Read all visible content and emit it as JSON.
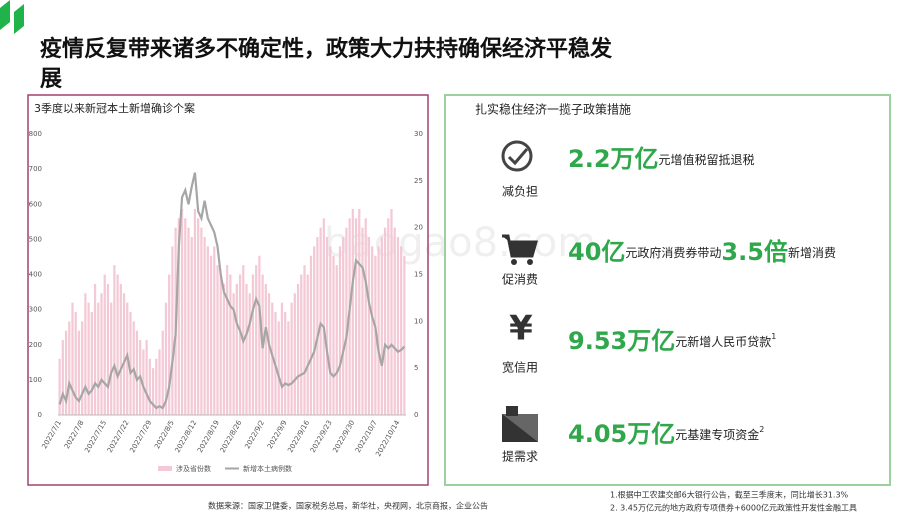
{
  "header": {
    "title_line1": "疫情反复带来诸多不确定性，政策大力扶持确保经济平稳发",
    "title_line2": "展"
  },
  "watermark": "baogao8.com",
  "chart_data": {
    "type": "bar_line",
    "title": "3季度以来新冠本土新增确诊个案",
    "categories": [
      "2022/7/1",
      null,
      null,
      null,
      null,
      null,
      null,
      "2022/7/8",
      null,
      null,
      null,
      null,
      null,
      null,
      "2022/7/15",
      null,
      null,
      null,
      null,
      null,
      null,
      "2022/7/22",
      null,
      null,
      null,
      null,
      null,
      null,
      "2022/7/29",
      null,
      null,
      null,
      null,
      null,
      null,
      "2022/8/5",
      null,
      null,
      null,
      null,
      null,
      null,
      "2022/8/12",
      null,
      null,
      null,
      null,
      null,
      null,
      "2022/8/19",
      null,
      null,
      null,
      null,
      null,
      null,
      "2022/8/26",
      null,
      null,
      null,
      null,
      null,
      null,
      "2022/9/2",
      null,
      null,
      null,
      null,
      null,
      null,
      "2022/9/9",
      null,
      null,
      null,
      null,
      null,
      null,
      "2022/9/16",
      null,
      null,
      null,
      null,
      null,
      null,
      "2022/9/23",
      null,
      null,
      null,
      null,
      null,
      null,
      "2022/9/30",
      null,
      null,
      null,
      null,
      null,
      null,
      "2022/10/7",
      null,
      null,
      null,
      null,
      null,
      null,
      "2022/10/14",
      null,
      null
    ],
    "series": [
      {
        "name": "涉及省份数",
        "color": "#f4c9d6",
        "type": "bar",
        "axis": "y2",
        "values": [
          6,
          8,
          9,
          10,
          12,
          11,
          9,
          10,
          13,
          12,
          11,
          14,
          12,
          13,
          15,
          14,
          12,
          16,
          15,
          14,
          13,
          12,
          11,
          10,
          9,
          8,
          7,
          8,
          6,
          5,
          6,
          7,
          9,
          12,
          15,
          18,
          20,
          21,
          22,
          21,
          20,
          19,
          22,
          21,
          20,
          19,
          18,
          17,
          18,
          16,
          15,
          14,
          16,
          15,
          13,
          14,
          15,
          16,
          14,
          13,
          15,
          16,
          17,
          15,
          14,
          13,
          12,
          11,
          10,
          12,
          11,
          10,
          12,
          13,
          14,
          15,
          16,
          15,
          17,
          18,
          19,
          20,
          21,
          19,
          18,
          17,
          16,
          18,
          19,
          20,
          21,
          22,
          21,
          22,
          20,
          21,
          19,
          18,
          17,
          18,
          19,
          20,
          21,
          22,
          20,
          19,
          18,
          17
        ]
      },
      {
        "name": "新增本土病例数",
        "color": "#a6a6a6",
        "type": "line",
        "values": [
          30,
          60,
          40,
          90,
          70,
          50,
          40,
          60,
          80,
          60,
          70,
          90,
          80,
          100,
          90,
          80,
          120,
          140,
          110,
          130,
          150,
          170,
          120,
          130,
          100,
          110,
          80,
          60,
          40,
          30,
          20,
          25,
          20,
          40,
          80,
          150,
          230,
          480,
          620,
          640,
          600,
          650,
          690,
          580,
          560,
          610,
          560,
          540,
          520,
          480,
          400,
          350,
          330,
          310,
          300,
          260,
          240,
          210,
          230,
          260,
          300,
          330,
          310,
          190,
          250,
          200,
          170,
          140,
          110,
          80,
          90,
          85,
          90,
          100,
          110,
          115,
          120,
          140,
          160,
          180,
          220,
          260,
          250,
          180,
          120,
          110,
          120,
          140,
          180,
          220,
          300,
          380,
          440,
          430,
          420,
          380,
          320,
          280,
          250,
          180,
          140,
          200,
          190,
          200,
          190,
          180,
          185,
          195
        ]
      }
    ],
    "ylim": [
      0,
      800
    ],
    "yticks": [
      0,
      100,
      200,
      300,
      400,
      500,
      600,
      700,
      800
    ],
    "y2lim": [
      0,
      30
    ],
    "y2ticks": [
      0,
      5,
      10,
      15,
      20,
      25,
      30
    ],
    "legend": "bottom"
  },
  "policy": {
    "title": "扎实稳住经济一揽子政策措施",
    "items": [
      {
        "label": "减负担",
        "big": "2.2万亿",
        "text": "元增值税留抵退税"
      },
      {
        "label": "促消费",
        "big": "40亿",
        "text": "元政府消费券带动",
        "big2": "3.5倍",
        "text2": "新增消费"
      },
      {
        "label": "宽信用",
        "big": "9.53万亿",
        "text": "元新增人民币贷款",
        "note": "1"
      },
      {
        "label": "提需求",
        "big": "4.05万亿",
        "text": "元基建专项资金",
        "note": "2"
      }
    ]
  },
  "footer": {
    "source": "数据来源：国家卫健委，国家税务总局，新华社，央视网，北京商报，企业公告",
    "notes": [
      "1.根据中工农建交邮6大银行公告，截至三季度末，同比增长31.3%",
      "2. 3.45万亿元的地方政府专项债券+6000亿元政策性开发性金融工具"
    ]
  }
}
